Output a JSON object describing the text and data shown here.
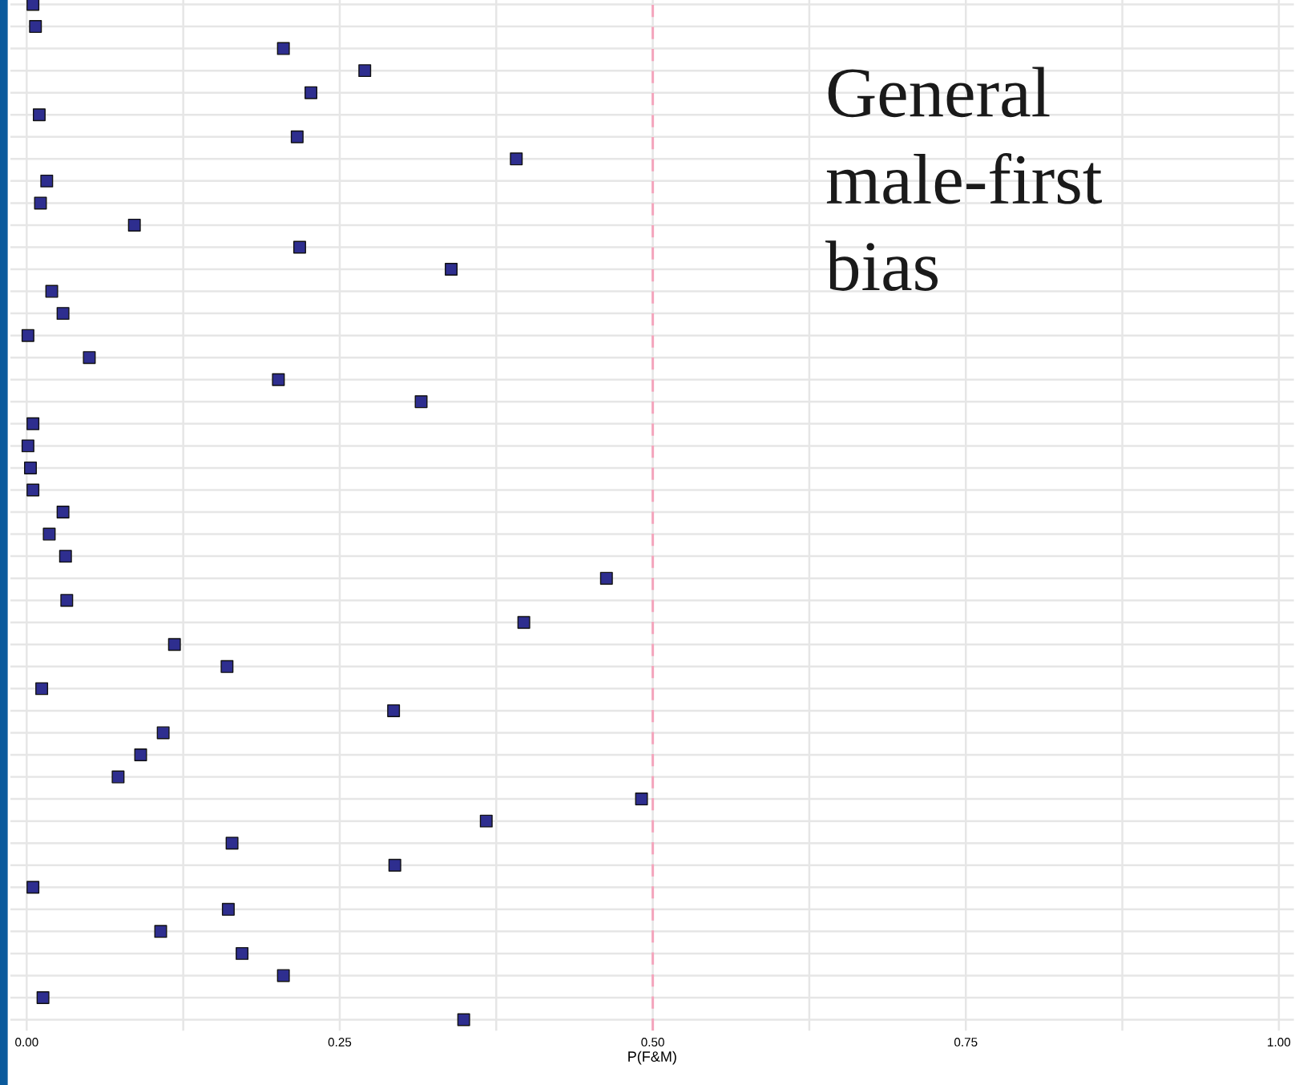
{
  "chart_data": {
    "type": "scatter",
    "orientation": "horizontal",
    "xlabel": "P(F&M)",
    "categories": [
      null,
      null,
      null,
      null,
      null,
      null,
      null,
      null,
      null,
      null,
      null,
      null,
      null,
      null,
      null,
      null,
      null,
      null,
      null,
      null,
      null,
      null,
      null,
      null,
      null,
      null,
      null,
      null,
      null,
      null,
      null,
      null,
      null,
      null,
      null,
      null,
      null,
      null,
      null,
      null,
      null,
      null,
      null,
      null,
      null,
      null,
      null
    ],
    "series": [
      {
        "color": "#2e2e8f",
        "values": [
          0.005,
          0.007,
          0.205,
          0.27,
          0.227,
          0.01,
          0.216,
          0.391,
          0.016,
          0.011,
          0.086,
          0.218,
          0.339,
          0.02,
          0.029,
          0.001,
          0.05,
          0.201,
          0.315,
          0.005,
          0.001,
          0.003,
          0.005,
          0.029,
          0.018,
          0.031,
          0.463,
          0.032,
          0.397,
          0.118,
          0.16,
          0.012,
          0.293,
          0.109,
          0.091,
          0.073,
          0.491,
          0.367,
          0.164,
          0.294,
          0.005,
          0.161,
          0.107,
          0.172,
          0.205,
          0.013,
          0.349
        ]
      }
    ],
    "xlim": [
      -0.013,
      1.012
    ],
    "xticks": [
      {
        "value": 0,
        "label": "0.00"
      },
      {
        "value": 0.125,
        "label": null
      },
      0.25,
      {
        "value": 0.375,
        "label": null
      },
      {
        "value": 0.5,
        "label": "0.50"
      },
      {
        "value": 0.625,
        "label": null
      },
      0.75,
      {
        "value": 0.875,
        "label": null
      },
      {
        "value": 1,
        "label": "1.00"
      }
    ],
    "tick_labels": "x",
    "grid": true,
    "marker": "square",
    "ref_lines": [
      {
        "axis": "x",
        "value": 0.5,
        "color": "#f4a6bd",
        "line_style": "dashed"
      }
    ],
    "annotations": [
      "General\nmale-first\nbias"
    ]
  }
}
